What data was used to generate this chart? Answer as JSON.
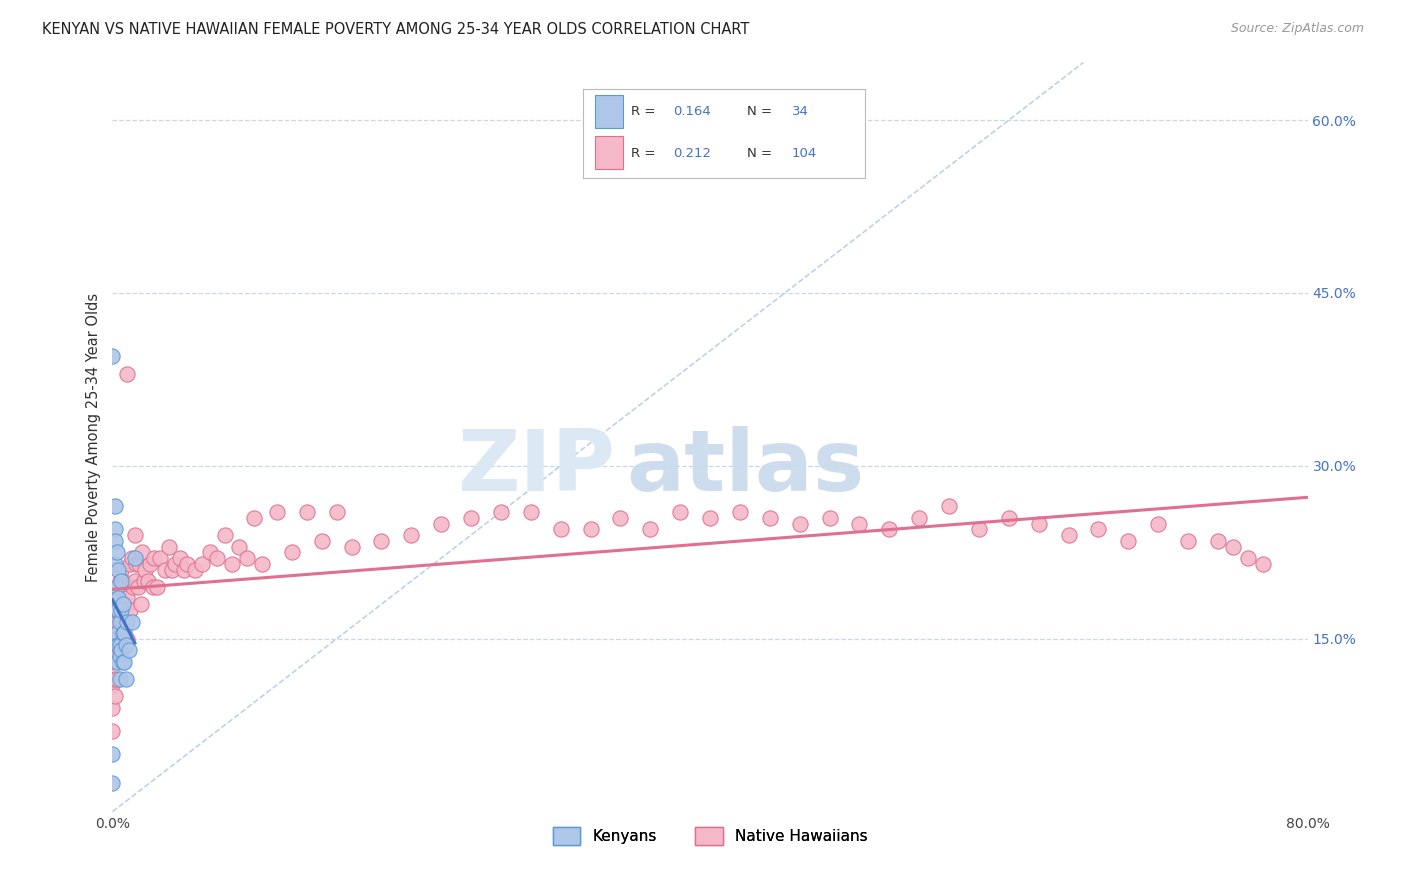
{
  "title": "KENYAN VS NATIVE HAWAIIAN FEMALE POVERTY AMONG 25-34 YEAR OLDS CORRELATION CHART",
  "source": "Source: ZipAtlas.com",
  "ylabel": "Female Poverty Among 25-34 Year Olds",
  "xlim": [
    0.0,
    0.8
  ],
  "ylim": [
    0.0,
    0.65
  ],
  "yticks_right": [
    0.15,
    0.3,
    0.45,
    0.6
  ],
  "ytick_labels_right": [
    "15.0%",
    "30.0%",
    "45.0%",
    "60.0%"
  ],
  "kenyan_R": 0.164,
  "kenyan_N": 34,
  "hawaiian_R": 0.212,
  "hawaiian_N": 104,
  "kenyan_color": "#aec6e8",
  "kenyan_edge_color": "#5b9bd5",
  "hawaiian_color": "#f4b8c8",
  "hawaiian_edge_color": "#e07090",
  "kenyan_line_color": "#4472c4",
  "hawaiian_line_color": "#e07090",
  "diagonal_color": "#b8cfe8",
  "background_color": "#ffffff",
  "kenyan_x": [
    0.0,
    0.0,
    0.0,
    0.002,
    0.002,
    0.002,
    0.002,
    0.003,
    0.003,
    0.003,
    0.003,
    0.003,
    0.004,
    0.004,
    0.004,
    0.004,
    0.005,
    0.005,
    0.005,
    0.005,
    0.006,
    0.006,
    0.006,
    0.007,
    0.007,
    0.007,
    0.008,
    0.008,
    0.009,
    0.009,
    0.01,
    0.011,
    0.013,
    0.015
  ],
  "kenyan_y": [
    0.395,
    0.05,
    0.025,
    0.265,
    0.245,
    0.235,
    0.215,
    0.225,
    0.195,
    0.175,
    0.155,
    0.13,
    0.21,
    0.185,
    0.175,
    0.145,
    0.165,
    0.145,
    0.135,
    0.115,
    0.2,
    0.175,
    0.14,
    0.18,
    0.155,
    0.13,
    0.155,
    0.13,
    0.145,
    0.115,
    0.165,
    0.14,
    0.165,
    0.22
  ],
  "hawaiian_x": [
    0.0,
    0.0,
    0.0,
    0.0,
    0.0,
    0.001,
    0.001,
    0.001,
    0.002,
    0.002,
    0.002,
    0.003,
    0.003,
    0.003,
    0.004,
    0.004,
    0.004,
    0.005,
    0.005,
    0.005,
    0.006,
    0.006,
    0.007,
    0.007,
    0.008,
    0.008,
    0.009,
    0.01,
    0.01,
    0.01,
    0.012,
    0.012,
    0.013,
    0.014,
    0.015,
    0.015,
    0.016,
    0.017,
    0.018,
    0.019,
    0.02,
    0.021,
    0.022,
    0.024,
    0.025,
    0.027,
    0.028,
    0.03,
    0.032,
    0.035,
    0.038,
    0.04,
    0.042,
    0.045,
    0.048,
    0.05,
    0.055,
    0.06,
    0.065,
    0.07,
    0.075,
    0.08,
    0.085,
    0.09,
    0.095,
    0.1,
    0.11,
    0.12,
    0.13,
    0.14,
    0.15,
    0.16,
    0.18,
    0.2,
    0.22,
    0.24,
    0.26,
    0.28,
    0.3,
    0.32,
    0.34,
    0.36,
    0.38,
    0.4,
    0.42,
    0.44,
    0.46,
    0.48,
    0.5,
    0.52,
    0.54,
    0.56,
    0.58,
    0.6,
    0.62,
    0.64,
    0.66,
    0.68,
    0.7,
    0.72,
    0.74,
    0.75,
    0.76,
    0.77
  ],
  "hawaiian_y": [
    0.15,
    0.13,
    0.11,
    0.09,
    0.07,
    0.17,
    0.145,
    0.115,
    0.16,
    0.14,
    0.1,
    0.175,
    0.15,
    0.115,
    0.19,
    0.165,
    0.13,
    0.2,
    0.175,
    0.14,
    0.21,
    0.17,
    0.2,
    0.16,
    0.195,
    0.155,
    0.18,
    0.38,
    0.185,
    0.15,
    0.215,
    0.175,
    0.22,
    0.195,
    0.24,
    0.2,
    0.215,
    0.195,
    0.215,
    0.18,
    0.225,
    0.2,
    0.21,
    0.2,
    0.215,
    0.195,
    0.22,
    0.195,
    0.22,
    0.21,
    0.23,
    0.21,
    0.215,
    0.22,
    0.21,
    0.215,
    0.21,
    0.215,
    0.225,
    0.22,
    0.24,
    0.215,
    0.23,
    0.22,
    0.255,
    0.215,
    0.26,
    0.225,
    0.26,
    0.235,
    0.26,
    0.23,
    0.235,
    0.24,
    0.25,
    0.255,
    0.26,
    0.26,
    0.245,
    0.245,
    0.255,
    0.245,
    0.26,
    0.255,
    0.26,
    0.255,
    0.25,
    0.255,
    0.25,
    0.245,
    0.255,
    0.265,
    0.245,
    0.255,
    0.25,
    0.24,
    0.245,
    0.235,
    0.25,
    0.235,
    0.235,
    0.23,
    0.22,
    0.215
  ]
}
